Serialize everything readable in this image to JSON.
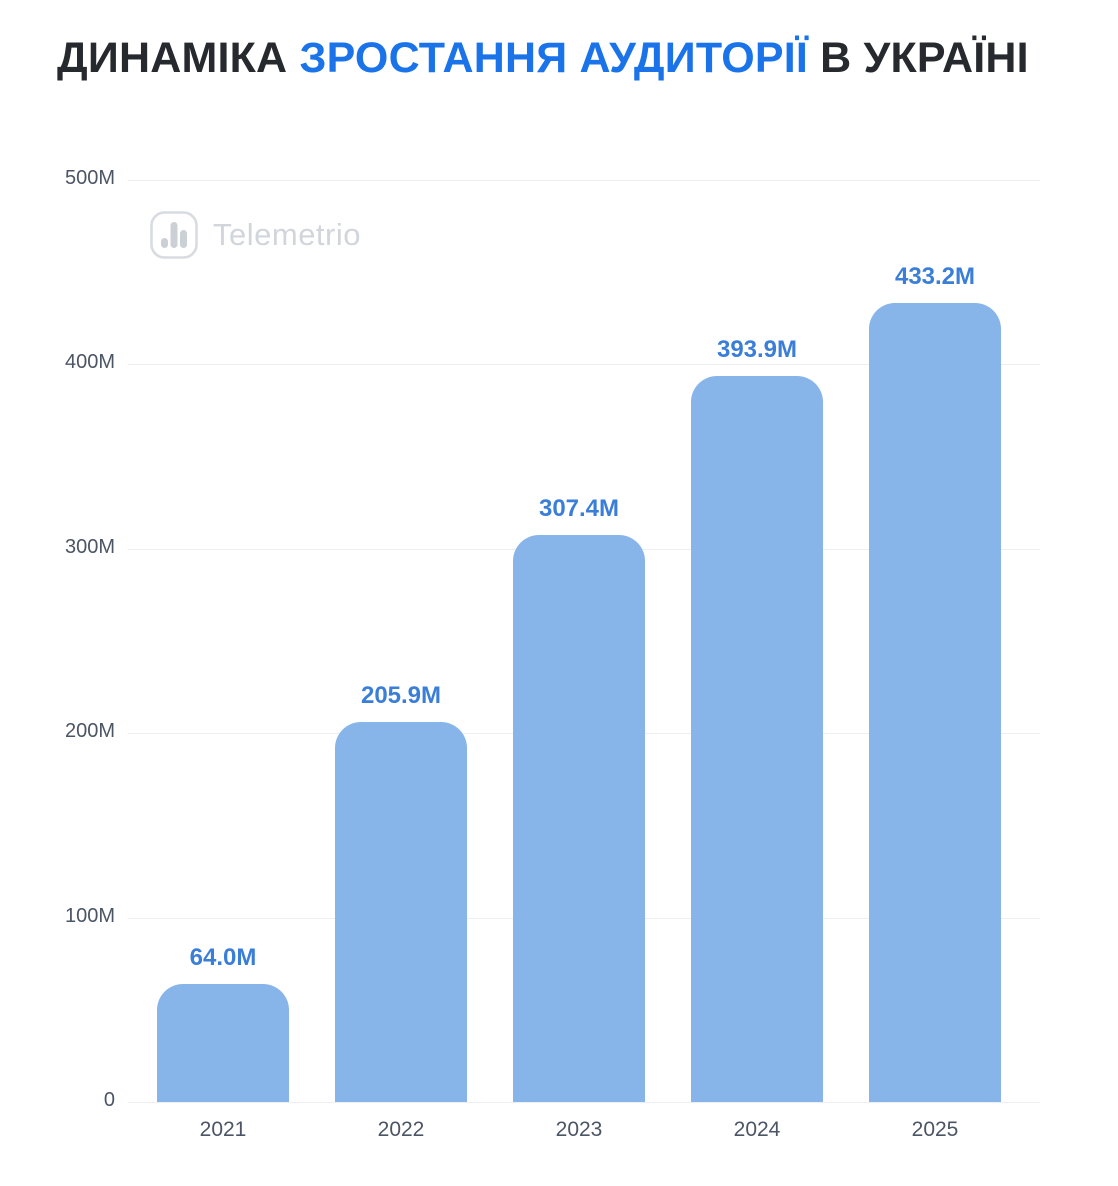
{
  "title": {
    "part1": "ДИНАМІКА ",
    "part2": "ЗРОСТАННЯ АУДИТОРІЇ",
    "part3": " В УКРАЇНІ"
  },
  "watermark": {
    "brand": "Telemetrio",
    "icon": "bar-chart-icon"
  },
  "chart_data": {
    "type": "bar",
    "title": "ДИНАМІКА ЗРОСТАННЯ АУДИТОРІЇ В УКРАЇНІ",
    "categories": [
      "2021",
      "2022",
      "2023",
      "2024",
      "2025"
    ],
    "values": [
      64.0,
      205.9,
      307.4,
      393.9,
      433.2
    ],
    "value_labels": [
      "64.0M",
      "205.9M",
      "307.4M",
      "393.9M",
      "433.2M"
    ],
    "unit": "M",
    "xlabel": "",
    "ylabel": "",
    "ylim": [
      0,
      500
    ],
    "y_ticks": [
      {
        "value": 500,
        "label": "500M"
      },
      {
        "value": 400,
        "label": "400M"
      },
      {
        "value": 300,
        "label": "300M"
      },
      {
        "value": 200,
        "label": "200M"
      },
      {
        "value": 100,
        "label": "100M"
      },
      {
        "value": 0,
        "label": "0"
      }
    ],
    "grid": true,
    "legend": false,
    "colors": {
      "bar": "#87b5ea",
      "value_label": "#3b7ed8",
      "title_accent": "#1a73e8",
      "axis_label": "#4b5565",
      "gridline": "#eceef1",
      "watermark": "#d2d6dc"
    }
  }
}
